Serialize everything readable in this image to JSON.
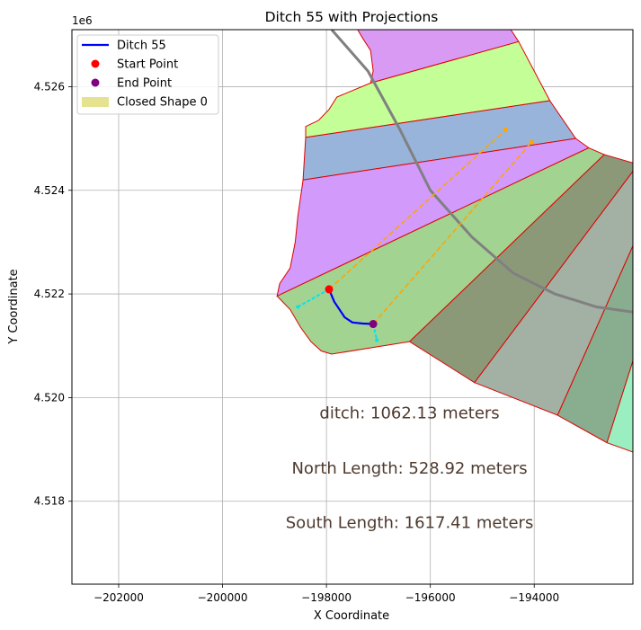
{
  "chart_data": {
    "type": "map-plot",
    "title": "Ditch 55 with Projections",
    "xlabel": "X Coordinate",
    "ylabel": "Y Coordinate",
    "y_offset_label": "1e6",
    "xlim": [
      -202900,
      -192100
    ],
    "ylim": [
      4516400,
      4527100
    ],
    "xticks": [
      {
        "v": -202000,
        "label": "−202000"
      },
      {
        "v": -200000,
        "label": "−200000"
      },
      {
        "v": -198000,
        "label": "−198000"
      },
      {
        "v": -196000,
        "label": "−196000"
      },
      {
        "v": -194000,
        "label": "−194000"
      }
    ],
    "yticks": [
      {
        "v": 4518000,
        "label": "4.518"
      },
      {
        "v": 4520000,
        "label": "4.520"
      },
      {
        "v": 4522000,
        "label": "4.522"
      },
      {
        "v": 4524000,
        "label": "4.524"
      },
      {
        "v": 4526000,
        "label": "4.526"
      }
    ],
    "grid": true,
    "legend_position": "top-left",
    "legend": [
      {
        "label": "Ditch 55",
        "kind": "line",
        "color": "#0000ff"
      },
      {
        "label": "Start Point",
        "kind": "dot",
        "color": "#ff0000"
      },
      {
        "label": "End Point",
        "kind": "dot",
        "color": "#800080"
      },
      {
        "label": "Closed Shape 0",
        "kind": "patch",
        "color": "#e2e084"
      }
    ],
    "polygons": [
      {
        "fill": "#d99af4",
        "points": [
          [
            -197400,
            4527100
          ],
          [
            -194450,
            4527100
          ],
          [
            -194300,
            4526870
          ],
          [
            -197150,
            4526070
          ],
          [
            -197100,
            4526300
          ],
          [
            -197150,
            4526700
          ],
          [
            -197300,
            4526930
          ]
        ]
      },
      {
        "fill": "#c3fe96",
        "points": [
          [
            -197150,
            4526070
          ],
          [
            -194300,
            4526870
          ],
          [
            -193700,
            4525730
          ],
          [
            -198400,
            4525020
          ],
          [
            -198400,
            4525230
          ],
          [
            -198150,
            4525350
          ],
          [
            -197950,
            4525560
          ],
          [
            -197800,
            4525800
          ]
        ]
      },
      {
        "fill": "#98b4da",
        "points": [
          [
            -198400,
            4525020
          ],
          [
            -193700,
            4525730
          ],
          [
            -193200,
            4525000
          ],
          [
            -198450,
            4524200
          ]
        ]
      },
      {
        "fill": "#d29afb",
        "points": [
          [
            -198450,
            4524200
          ],
          [
            -193200,
            4525000
          ],
          [
            -192950,
            4524820
          ],
          [
            -198950,
            4521960
          ],
          [
            -198900,
            4522200
          ],
          [
            -198700,
            4522500
          ],
          [
            -198600,
            4523000
          ],
          [
            -198550,
            4523500
          ]
        ]
      },
      {
        "fill": "#a3d391",
        "points": [
          [
            -198950,
            4521960
          ],
          [
            -192950,
            4524820
          ],
          [
            -192650,
            4524690
          ],
          [
            -196400,
            4521080
          ],
          [
            -197900,
            4520840
          ],
          [
            -198100,
            4520900
          ],
          [
            -198300,
            4521080
          ],
          [
            -198500,
            4521360
          ],
          [
            -198700,
            4521700
          ]
        ]
      },
      {
        "fill": "#8b9979",
        "points": [
          [
            -196400,
            4521080
          ],
          [
            -192650,
            4524690
          ],
          [
            -192000,
            4524500
          ],
          [
            -195150,
            4520290
          ]
        ]
      },
      {
        "fill": "#a2b1a3",
        "points": [
          [
            -195150,
            4520290
          ],
          [
            -192000,
            4524500
          ],
          [
            -191500,
            4524280
          ],
          [
            -193550,
            4519660
          ]
        ]
      },
      {
        "fill": "#88ae8f",
        "points": [
          [
            -193550,
            4519660
          ],
          [
            -191500,
            4524280
          ],
          [
            -191000,
            4524180
          ],
          [
            -192600,
            4519130
          ]
        ]
      },
      {
        "fill": "#9beebf",
        "points": [
          [
            -192600,
            4519130
          ],
          [
            -191000,
            4524180
          ],
          [
            -192100,
            4524050
          ],
          [
            -192100,
            4518950
          ]
        ]
      }
    ],
    "highway": [
      [
        -197900,
        4527100
      ],
      [
        -197200,
        4526300
      ],
      [
        -196600,
        4525200
      ],
      [
        -196000,
        4524000
      ],
      [
        -195200,
        4523100
      ],
      [
        -194400,
        4522400
      ],
      [
        -193600,
        4522000
      ],
      [
        -192800,
        4521750
      ],
      [
        -192100,
        4521650
      ]
    ],
    "projection_lines": [
      [
        [
          -197950,
          4522090
        ],
        [
          -194550,
          4525170
        ]
      ],
      [
        [
          -197100,
          4521420
        ],
        [
          -194050,
          4524930
        ]
      ]
    ],
    "projection_endpoints": [
      [
        -194550,
        4525170
      ],
      [
        -194050,
        4524930
      ]
    ],
    "cyan_segments": [
      [
        [
          -197950,
          4522090
        ],
        [
          -198550,
          4521750
        ]
      ],
      [
        [
          -197100,
          4521420
        ],
        [
          -197030,
          4521110
        ]
      ]
    ],
    "ditch": [
      [
        -197950,
        4522090
      ],
      [
        -197850,
        4521850
      ],
      [
        -197650,
        4521550
      ],
      [
        -197500,
        4521450
      ],
      [
        -197300,
        4521430
      ],
      [
        -197100,
        4521420
      ]
    ],
    "start_point": [
      -197950,
      4522090
    ],
    "end_point": [
      -197100,
      4521420
    ],
    "annotations": [
      {
        "text": "ditch: 1062.13 meters",
        "x": -196400,
        "y": 4519600
      },
      {
        "text": "North Length: 528.92 meters",
        "x": -196400,
        "y": 4518530
      },
      {
        "text": "South Length: 1617.41 meters",
        "x": -196400,
        "y": 4517480
      }
    ]
  }
}
